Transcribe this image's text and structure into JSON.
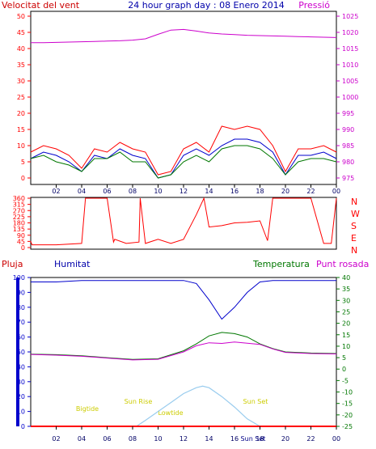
{
  "header": {
    "left_title": "Velocitat del vent",
    "center_title": "24 hour graph day : 08 Enero 2014",
    "right_title": "Pressió"
  },
  "colors": {
    "red": "#ff0000",
    "blue": "#0000cc",
    "green": "#007700",
    "magenta": "#cc00cc",
    "yellow": "#cccc00",
    "sky": "#99ccee"
  },
  "chart_data": [
    {
      "type": "line",
      "title": "",
      "ylim_left": [
        0,
        50
      ],
      "ylim_right": [
        975,
        1025
      ],
      "x_ticks": [
        "02",
        "04",
        "06",
        "08",
        "10",
        "12",
        "14",
        "16",
        "18",
        "20",
        "22",
        "00"
      ],
      "y_ticks_left": [
        "0",
        "5",
        "10",
        "15",
        "20",
        "25",
        "30",
        "35",
        "40",
        "45",
        "50"
      ],
      "y_ticks_right": [
        "975",
        "980",
        "985",
        "990",
        "995",
        "1000",
        "1005",
        "1010",
        "1015",
        "1020",
        "1025"
      ],
      "series": [
        {
          "name": "Velocitat del vent",
          "axis": "left",
          "x": [
            0,
            1,
            2,
            3,
            4,
            5,
            6,
            7,
            8,
            9,
            10,
            11,
            12,
            13,
            14,
            15,
            16,
            17,
            18,
            19,
            20,
            21,
            22,
            23,
            24
          ],
          "values": [
            8,
            10,
            9,
            7,
            3,
            9,
            8,
            11,
            9,
            8,
            1,
            2,
            9,
            11,
            8,
            16,
            15,
            16,
            15,
            10,
            2,
            9,
            9,
            10,
            8
          ]
        },
        {
          "name": "",
          "axis": "left",
          "x": [
            0,
            1,
            2,
            3,
            4,
            5,
            6,
            7,
            8,
            9,
            10,
            11,
            12,
            13,
            14,
            15,
            16,
            17,
            18,
            19,
            20,
            21,
            22,
            23,
            24
          ],
          "values": [
            6,
            8,
            7,
            5,
            2,
            7,
            6,
            9,
            7,
            6,
            0,
            1,
            7,
            9,
            7,
            10,
            12,
            12,
            11,
            8,
            1,
            7,
            7,
            8,
            6
          ]
        },
        {
          "name": "",
          "axis": "left",
          "x": [
            0,
            1,
            2,
            3,
            4,
            5,
            6,
            7,
            8,
            9,
            10,
            11,
            12,
            13,
            14,
            15,
            16,
            17,
            18,
            19,
            20,
            21,
            22,
            23,
            24
          ],
          "values": [
            6,
            7,
            5,
            4,
            2,
            6,
            6,
            8,
            5,
            5,
            0,
            1,
            5,
            7,
            5,
            9,
            10,
            10,
            9,
            6,
            1,
            5,
            6,
            6,
            5
          ]
        },
        {
          "name": "Pressió",
          "axis": "right",
          "x": [
            0,
            1,
            2,
            3,
            4,
            5,
            6,
            7,
            8,
            9,
            10,
            11,
            12,
            13,
            14,
            15,
            16,
            17,
            18,
            19,
            20,
            21,
            22,
            23,
            24
          ],
          "values": [
            1016.8,
            1016.8,
            1016.9,
            1017,
            1017.1,
            1017.2,
            1017.3,
            1017.4,
            1017.6,
            1018,
            1019.4,
            1020.7,
            1020.9,
            1020.4,
            1019.8,
            1019.5,
            1019.3,
            1019.1,
            1019,
            1018.9,
            1018.8,
            1018.7,
            1018.6,
            1018.5,
            1018.4
          ]
        }
      ]
    },
    {
      "type": "line",
      "title": "",
      "ylim": [
        0,
        360
      ],
      "y_ticks": [
        "0",
        "45",
        "90",
        "135",
        "180",
        "225",
        "270",
        "315",
        "360"
      ],
      "compass_labels": [
        "N",
        "W",
        "S",
        "E",
        "N"
      ],
      "series": [
        {
          "name": "",
          "x": [
            0,
            0.1,
            2,
            4,
            4.3,
            6,
            6.5,
            6.6,
            7.5,
            8.5,
            8.6,
            9,
            10,
            11,
            12,
            13,
            13.6,
            14,
            15,
            16,
            17,
            18,
            18.6,
            19,
            21,
            22,
            23,
            23.6,
            24
          ],
          "values": [
            45,
            20,
            20,
            30,
            360,
            360,
            40,
            60,
            30,
            40,
            360,
            30,
            60,
            30,
            60,
            240,
            360,
            150,
            160,
            180,
            185,
            195,
            50,
            360,
            360,
            360,
            30,
            30,
            360
          ]
        }
      ]
    },
    {
      "type": "line",
      "title": "",
      "ylim_left": [
        0,
        100
      ],
      "ylim_right": [
        -25,
        40
      ],
      "y_ticks_left": [
        "0",
        "10",
        "20",
        "30",
        "40",
        "50",
        "60",
        "70",
        "80",
        "90",
        "100"
      ],
      "y_ticks_right": [
        "-25",
        "-20",
        "-15",
        "-10",
        "-5",
        "0",
        "5",
        "10",
        "15",
        "20",
        "25",
        "30",
        "35",
        "40"
      ],
      "legend_labels": [
        "Pluja",
        "Humitat",
        "Temperatura",
        "Punt rosada"
      ],
      "series": [
        {
          "name": "Humitat",
          "x": [
            0,
            2,
            4,
            6,
            8,
            10,
            12,
            13,
            14,
            15,
            16,
            17,
            18,
            19,
            20,
            22,
            24
          ],
          "values": [
            97,
            97,
            98,
            98,
            98,
            98,
            98,
            96,
            85,
            72,
            80,
            90,
            97,
            98,
            98,
            98,
            98
          ]
        },
        {
          "name": "Temperatura",
          "x": [
            0,
            2,
            4,
            6,
            8,
            10,
            12,
            13,
            14,
            15,
            16,
            17,
            18,
            19,
            20,
            22,
            24
          ],
          "values": [
            6.5,
            6.3,
            5.8,
            5,
            4.2,
            4.5,
            8,
            11,
            14.5,
            16,
            15.5,
            14,
            11,
            9,
            7.5,
            7,
            6.8
          ]
        },
        {
          "name": "Punt rosada",
          "x": [
            0,
            2,
            4,
            6,
            8,
            10,
            12,
            13,
            14,
            15,
            16,
            17,
            18,
            19,
            20,
            22,
            24
          ],
          "values": [
            6.4,
            6.1,
            5.6,
            4.8,
            4,
            4.3,
            7.5,
            10.2,
            11.5,
            11.2,
            11.8,
            11.3,
            10.8,
            8.8,
            7.3,
            6.8,
            6.6
          ]
        },
        {
          "name": "Pluja",
          "x": [
            0,
            24
          ],
          "values": [
            0,
            0
          ]
        }
      ],
      "sun_curve": {
        "x": [
          8.3,
          9,
          10,
          11,
          12,
          13,
          13.5,
          14,
          15,
          16,
          17,
          18
        ],
        "values": [
          0,
          4,
          10,
          16,
          22,
          26,
          27,
          26,
          20,
          13,
          5,
          0
        ]
      },
      "annotations": [
        "Sun Rise",
        "Sun Set",
        "Bigtide",
        "Lowtide",
        "Sun Set"
      ]
    }
  ]
}
